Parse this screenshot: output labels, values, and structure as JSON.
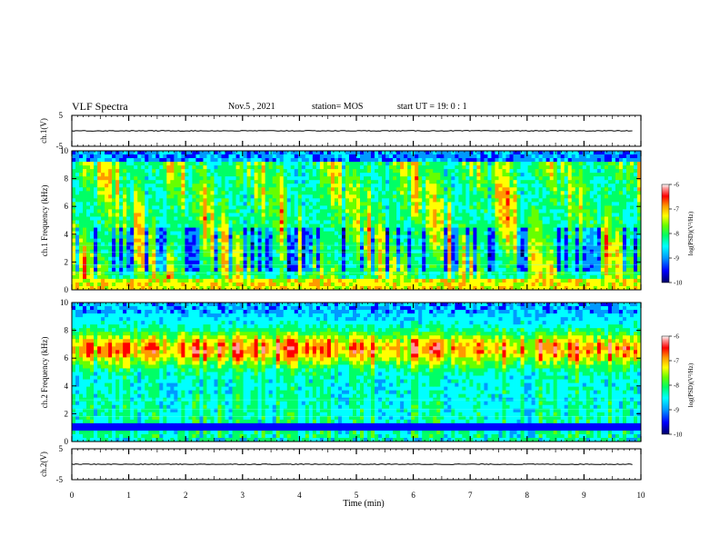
{
  "header": {
    "title": "VLF Spectra",
    "date": "Nov.5 , 2021",
    "station": "station= MOS",
    "start": "start UT = 19: 0 : 1"
  },
  "colors": {
    "colormap": [
      "#000066",
      "#0000ff",
      "#0099ff",
      "#00ffff",
      "#00ff66",
      "#66ff00",
      "#ffff00",
      "#ff9900",
      "#ff0000",
      "#ff9999",
      "#ffffff"
    ]
  },
  "chart_data": [
    {
      "type": "line",
      "panel": "ch1-waveform",
      "ylabel": "ch.1(V)",
      "ylim": [
        -5,
        5
      ],
      "yticks": [
        "5",
        "-5"
      ],
      "x": [
        0,
        10
      ],
      "values": [
        0,
        0
      ]
    },
    {
      "type": "heatmap",
      "panel": "ch1-spectrogram",
      "ylabel": "ch.1 Frequency (kHz)",
      "ylim": [
        0,
        10
      ],
      "yticks": [
        "0",
        "2",
        "4",
        "6",
        "8",
        "10"
      ],
      "xlim": [
        0,
        10
      ],
      "colorbar": {
        "label": "log(PSD)(V²/Hz)",
        "range": [
          -10,
          -6
        ],
        "ticks": [
          "-6",
          "-7",
          "-8",
          "-9",
          "-10"
        ]
      }
    },
    {
      "type": "heatmap",
      "panel": "ch2-spectrogram",
      "ylabel": "ch.2 Frequency (kHz)",
      "ylim": [
        0,
        10
      ],
      "yticks": [
        "0",
        "2",
        "4",
        "6",
        "8",
        "10"
      ],
      "xlim": [
        0,
        10
      ],
      "colorbar": {
        "label": "log(PSD)(V²/Hz)",
        "range": [
          -10,
          -6
        ],
        "ticks": [
          "-6",
          "-7",
          "-8",
          "-9",
          "-10"
        ]
      }
    },
    {
      "type": "line",
      "panel": "ch2-waveform",
      "ylabel": "ch.2(V)",
      "ylim": [
        -5,
        5
      ],
      "yticks": [
        "5",
        "-5"
      ],
      "x": [
        0,
        10
      ],
      "values": [
        0,
        0
      ]
    }
  ],
  "xaxis": {
    "label": "Time (min)",
    "xlim": [
      0,
      10
    ],
    "ticks": [
      "0",
      "1",
      "2",
      "3",
      "4",
      "5",
      "6",
      "7",
      "8",
      "9",
      "10"
    ]
  }
}
